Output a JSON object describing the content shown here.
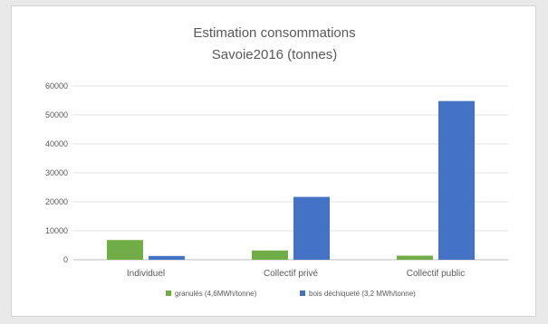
{
  "chart_data": {
    "type": "bar",
    "title": [
      "Estimation consommations",
      "Savoie2016 (tonnes)"
    ],
    "xlabel": "",
    "ylabel": "",
    "categories": [
      "Individuel",
      "Collectif privé",
      "Collectif public"
    ],
    "series": [
      {
        "name": "granulés (4,6MWh/tonne)",
        "color": "#70ad47",
        "values": [
          6800,
          3200,
          1400
        ]
      },
      {
        "name": "bois déchiqueté (3,2 MWh/tonne)",
        "color": "#4472c4",
        "values": [
          1300,
          21700,
          54800
        ]
      }
    ],
    "ylim": [
      0,
      60000
    ],
    "yticks": [
      "0",
      "10000",
      "20000",
      "30000",
      "40000",
      "50000",
      "60000"
    ],
    "grid": true,
    "legend_position": "bottom"
  }
}
